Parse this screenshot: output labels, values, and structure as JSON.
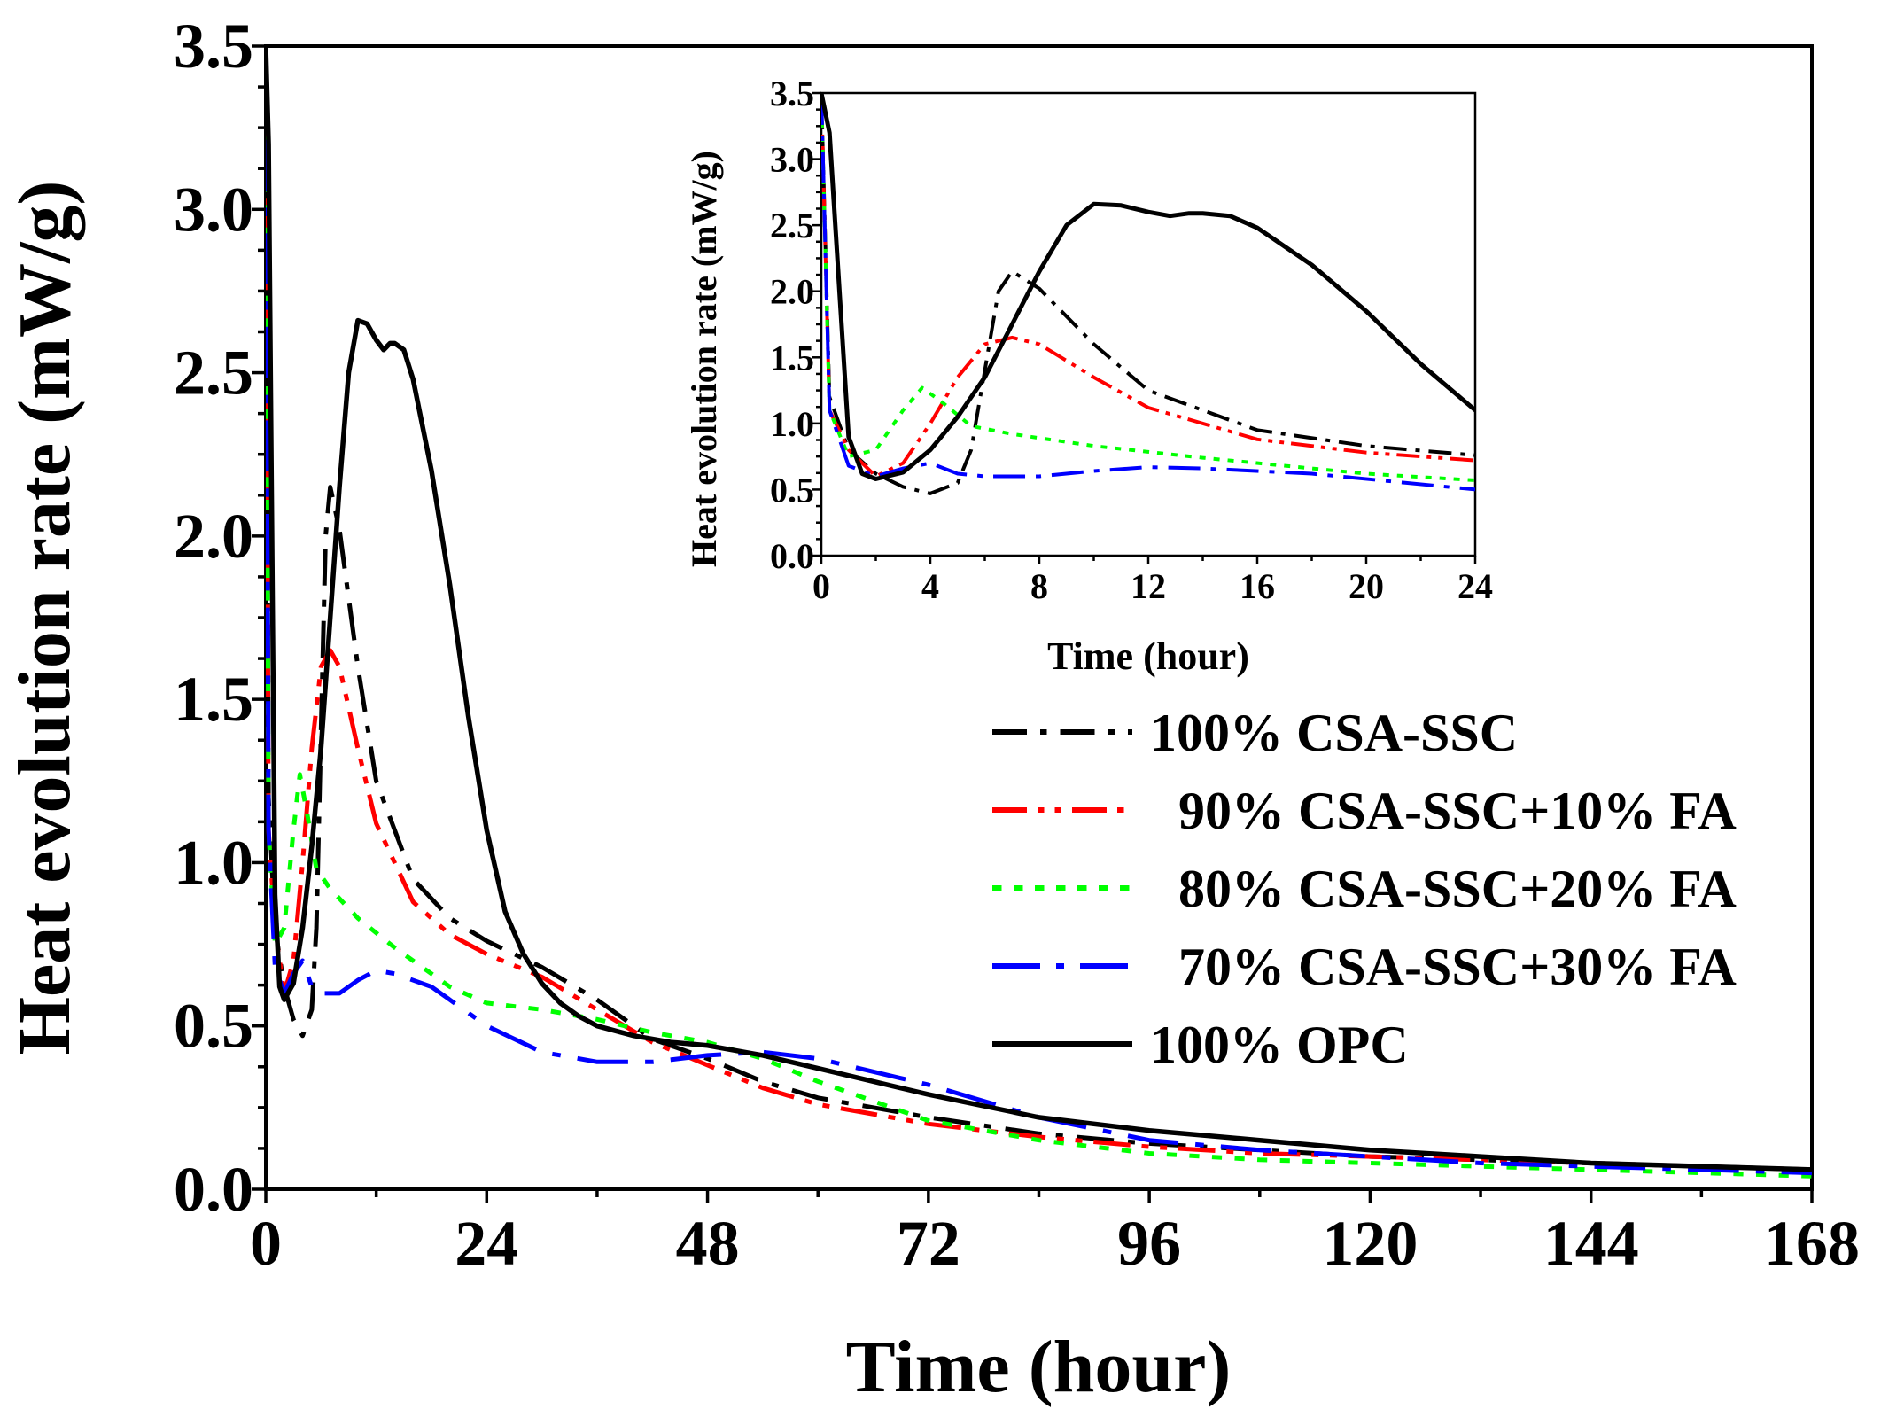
{
  "chart_data": [
    {
      "type": "line",
      "panel": "main",
      "title": "",
      "xlabel": "Time (hour)",
      "ylabel": "Heat evolution rate (mW/g)",
      "xlim": [
        0,
        168
      ],
      "ylim": [
        0,
        3.5
      ],
      "xticks": [
        "0",
        "24",
        "48",
        "72",
        "96",
        "120",
        "144",
        "168"
      ],
      "yticks": [
        "0.0",
        "0.5",
        "1.0",
        "1.5",
        "2.0",
        "2.5",
        "3.0",
        "3.5"
      ],
      "legend_position": "right-middle",
      "series": [
        {
          "name": "100% CSA-SSC",
          "color": "#000000",
          "style": "dash-dot",
          "x": [
            0,
            0.3,
            1,
            2,
            3,
            4,
            5,
            5.5,
            6,
            6.5,
            7,
            8,
            10,
            12,
            16,
            20,
            24,
            30,
            36,
            42,
            48,
            54,
            60,
            72,
            84,
            96,
            108,
            120,
            132,
            144,
            156,
            168
          ],
          "y": [
            3.5,
            1.2,
            0.8,
            0.62,
            0.52,
            0.47,
            0.55,
            0.8,
            1.4,
            2.0,
            2.15,
            2.02,
            1.6,
            1.25,
            0.95,
            0.83,
            0.76,
            0.68,
            0.58,
            0.46,
            0.4,
            0.33,
            0.28,
            0.22,
            0.17,
            0.14,
            0.12,
            0.1,
            0.09,
            0.08,
            0.07,
            0.06
          ]
        },
        {
          "name": "90% CSA-SSC+10% FA",
          "color": "#ff0000",
          "style": "dash-dot-dot",
          "x": [
            0,
            0.3,
            1,
            2,
            3,
            4,
            5,
            6,
            7,
            8,
            10,
            12,
            16,
            20,
            24,
            30,
            36,
            42,
            48,
            54,
            60,
            72,
            84,
            96,
            108,
            120,
            132,
            144,
            156,
            168
          ],
          "y": [
            3.5,
            1.1,
            0.8,
            0.6,
            0.7,
            1.0,
            1.35,
            1.6,
            1.65,
            1.6,
            1.35,
            1.12,
            0.88,
            0.78,
            0.72,
            0.65,
            0.55,
            0.45,
            0.38,
            0.31,
            0.26,
            0.2,
            0.16,
            0.13,
            0.11,
            0.1,
            0.09,
            0.08,
            0.07,
            0.06
          ]
        },
        {
          "name": "80% CSA-SSC+20% FA",
          "color": "#00ff00",
          "style": "dotted",
          "x": [
            0,
            0.3,
            1,
            2,
            3,
            3.7,
            4.5,
            5.5,
            7,
            10,
            14,
            20,
            24,
            30,
            36,
            42,
            48,
            54,
            60,
            72,
            84,
            96,
            108,
            120,
            132,
            144,
            156,
            168
          ],
          "y": [
            3.5,
            1.1,
            0.75,
            0.8,
            1.1,
            1.27,
            1.15,
            0.98,
            0.92,
            0.83,
            0.74,
            0.62,
            0.57,
            0.55,
            0.52,
            0.48,
            0.45,
            0.4,
            0.33,
            0.21,
            0.15,
            0.11,
            0.09,
            0.08,
            0.07,
            0.06,
            0.05,
            0.04
          ]
        },
        {
          "name": "70% CSA-SSC+30% FA",
          "color": "#0000ff",
          "style": "dash-dot-long",
          "x": [
            0,
            0.3,
            1,
            2,
            3,
            4,
            5,
            6,
            8,
            10,
            12,
            14,
            18,
            24,
            30,
            36,
            42,
            48,
            54,
            60,
            66,
            72,
            84,
            96,
            108,
            120,
            132,
            144,
            156,
            168
          ],
          "y": [
            3.5,
            1.1,
            0.68,
            0.6,
            0.66,
            0.7,
            0.62,
            0.6,
            0.6,
            0.64,
            0.67,
            0.66,
            0.62,
            0.5,
            0.42,
            0.39,
            0.39,
            0.41,
            0.42,
            0.4,
            0.36,
            0.32,
            0.22,
            0.15,
            0.12,
            0.1,
            0.08,
            0.07,
            0.06,
            0.05
          ]
        },
        {
          "name": "100% OPC",
          "color": "#000000",
          "style": "solid",
          "x": [
            0,
            0.3,
            1,
            1.5,
            2,
            3,
            4,
            5,
            6,
            7,
            8,
            9,
            10,
            11,
            12,
            12.8,
            13.5,
            14,
            15,
            16,
            18,
            20,
            22,
            24,
            26,
            28,
            30,
            32,
            34,
            36,
            40,
            44,
            48,
            54,
            60,
            72,
            84,
            96,
            108,
            120,
            132,
            144,
            156,
            168
          ],
          "y": [
            3.5,
            3.2,
            0.9,
            0.62,
            0.58,
            0.63,
            0.8,
            1.05,
            1.35,
            1.75,
            2.15,
            2.5,
            2.66,
            2.65,
            2.6,
            2.57,
            2.59,
            2.59,
            2.57,
            2.48,
            2.2,
            1.85,
            1.45,
            1.1,
            0.85,
            0.72,
            0.63,
            0.57,
            0.53,
            0.5,
            0.47,
            0.45,
            0.44,
            0.41,
            0.37,
            0.29,
            0.22,
            0.18,
            0.15,
            0.12,
            0.1,
            0.08,
            0.07,
            0.06
          ]
        }
      ]
    },
    {
      "type": "line",
      "panel": "inset",
      "title": "",
      "xlabel": "Time (hour)",
      "ylabel": "Heat evolution rate (mW/g)",
      "xlim": [
        0,
        24
      ],
      "ylim": [
        0,
        3.5
      ],
      "xticks": [
        "0",
        "4",
        "8",
        "12",
        "16",
        "20",
        "24"
      ],
      "yticks": [
        "0.0",
        "0.5",
        "1.0",
        "1.5",
        "2.0",
        "2.5",
        "3.0",
        "3.5"
      ],
      "series_ref": "same five series as main panel, x clipped to 0–24"
    }
  ]
}
